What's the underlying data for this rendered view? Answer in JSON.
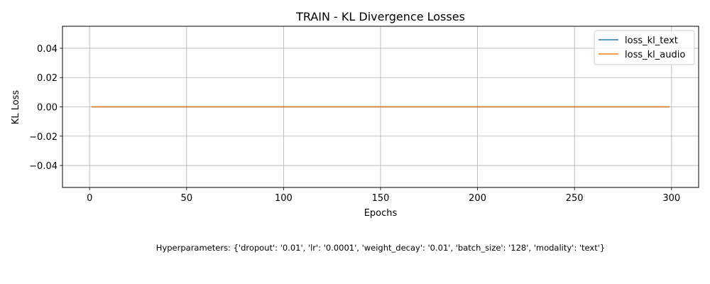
{
  "chart_data": {
    "type": "line",
    "title": "TRAIN - KL Divergence Losses",
    "xlabel": "Epochs",
    "ylabel": "KL Loss",
    "xlim": [
      -14,
      314
    ],
    "ylim": [
      -0.055,
      0.055
    ],
    "x_ticks": [
      0,
      50,
      100,
      150,
      200,
      250,
      300
    ],
    "y_ticks": [
      0.04,
      0.02,
      0.0,
      -0.02,
      -0.04
    ],
    "y_tick_labels": [
      "0.04",
      "0.02",
      "0.00",
      "−0.02",
      "−0.04"
    ],
    "grid": true,
    "legend_position": "top-right",
    "series": [
      {
        "name": "loss_kl_text",
        "color": "#1f77b4",
        "x_range": [
          1,
          299
        ],
        "value": 0.0
      },
      {
        "name": "loss_kl_audio",
        "color": "#ff7f0e",
        "x_range": [
          1,
          299
        ],
        "value": 0.0
      }
    ]
  },
  "footnote": "Hyperparameters: {'dropout': '0.01', 'lr': '0.0001', 'weight_decay': '0.01', 'batch_size': '128', 'modality': 'text'}"
}
